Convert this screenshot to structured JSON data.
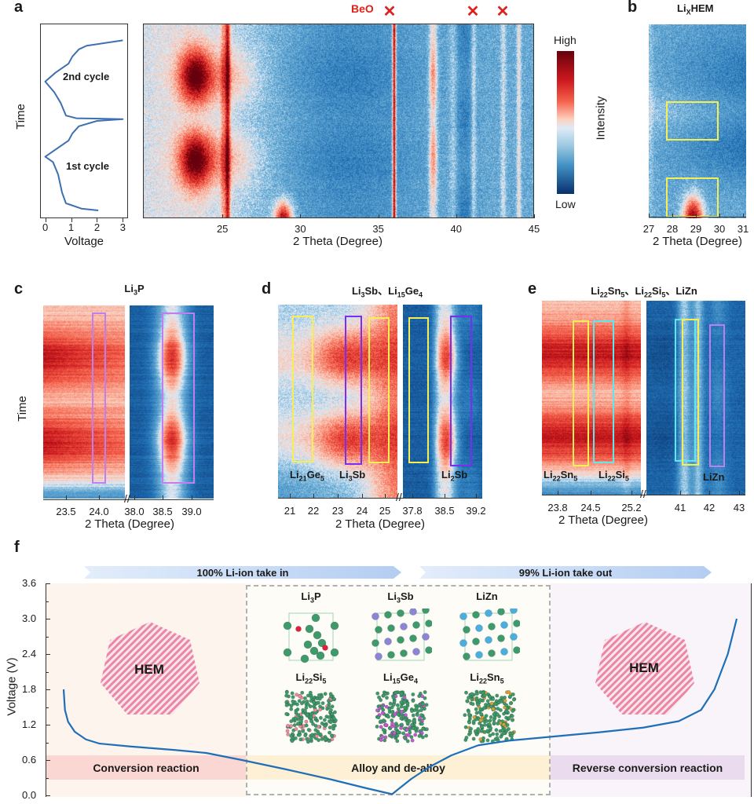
{
  "figure": {
    "panel_letters": [
      "a",
      "b",
      "c",
      "d",
      "e",
      "f"
    ]
  },
  "chart_data": [
    {
      "panel": "a-voltage",
      "type": "line",
      "xlabel": "Voltage",
      "ylabel": "Time",
      "xlim": [
        -0.2,
        3.2
      ],
      "xticks": [
        "0",
        "1",
        "2",
        "3"
      ],
      "annotations": [
        "2nd cycle",
        "1st cycle"
      ],
      "series": [
        {
          "name": "voltage profile",
          "points_voltage_vs_time_fraction": [
            [
              2.05,
              0.0
            ],
            [
              1.4,
              0.01
            ],
            [
              0.8,
              0.04
            ],
            [
              0.65,
              0.1
            ],
            [
              0.5,
              0.2
            ],
            [
              0.3,
              0.27
            ],
            [
              0.0,
              0.3
            ],
            [
              0.4,
              0.34
            ],
            [
              0.9,
              0.39
            ],
            [
              1.05,
              0.43
            ],
            [
              1.3,
              0.47
            ],
            [
              2.0,
              0.5
            ],
            [
              3.0,
              0.51
            ],
            [
              1.2,
              0.515
            ],
            [
              0.8,
              0.53
            ],
            [
              0.6,
              0.6
            ],
            [
              0.35,
              0.66
            ],
            [
              0.0,
              0.72
            ],
            [
              0.4,
              0.77
            ],
            [
              0.9,
              0.82
            ],
            [
              1.05,
              0.86
            ],
            [
              1.3,
              0.9
            ],
            [
              1.6,
              0.92
            ],
            [
              3.0,
              0.95
            ]
          ]
        }
      ]
    },
    {
      "panel": "a-heatmap",
      "type": "heatmap",
      "xlabel": "2 Theta (Degree)",
      "xlim": [
        19.9,
        45
      ],
      "xticks": [
        "25",
        "30",
        "35",
        "40",
        "45"
      ],
      "colorbar": {
        "label": "Intensity",
        "high": "High",
        "low": "Low"
      },
      "markers": [
        {
          "label": "BeO",
          "x": 36.0
        },
        {
          "label": "×",
          "x": 36.0
        },
        {
          "label": "×",
          "x": 41.1
        },
        {
          "label": "×",
          "x": 43.0
        }
      ],
      "peaks_2theta": [
        23.2,
        25.3,
        28.9,
        36.0,
        38.5,
        41.1,
        43.0,
        44.0
      ]
    },
    {
      "panel": "b",
      "type": "heatmap",
      "title": "LixHEM",
      "xlabel": "2 Theta (Degree)",
      "xlim": [
        27,
        31
      ],
      "xticks": [
        "27",
        "28",
        "29",
        "30",
        "31"
      ],
      "highlight_boxes": [
        {
          "x": [
            27.7,
            29.9
          ],
          "color": "#f2f06a"
        },
        {
          "x": [
            27.7,
            29.9
          ],
          "color": "#f2f06a"
        }
      ]
    },
    {
      "panel": "c",
      "type": "heatmap",
      "title": "Li3P",
      "ylabel": "Time",
      "xlabel": "2 Theta (Degree)",
      "xticks_left": [
        "23.5",
        "24.0"
      ],
      "xticks_right": [
        "38.0",
        "38.5",
        "39.0"
      ],
      "highlight_boxes": [
        {
          "x": [
            23.85,
            23.95
          ],
          "color": "#c07ef0"
        },
        {
          "x": [
            38.3,
            38.75
          ],
          "color": "#c07ef0"
        }
      ]
    },
    {
      "panel": "d",
      "type": "heatmap",
      "title": "Li3Sb、Li15Ge4",
      "xlabel": "2 Theta (Degree)",
      "xticks_left": [
        "21",
        "22",
        "23",
        "24",
        "25"
      ],
      "xticks_right": [
        "37.8",
        "38.5",
        "39.2"
      ],
      "box_labels": [
        "Li21Ge5",
        "Li3Sb",
        "Li2Sb"
      ]
    },
    {
      "panel": "e",
      "type": "heatmap",
      "title": "Li22Sn5、Li22Si5、LiZn",
      "xlabel": "2 Theta (Degree)",
      "xticks_left": [
        "23.8",
        "24.5",
        "25.2"
      ],
      "xticks_right": [
        "41",
        "42",
        "43"
      ],
      "box_labels": [
        "Li22Sn5",
        "Li22Si5",
        "LiZn"
      ]
    },
    {
      "panel": "f",
      "type": "line",
      "ylabel": "Voltage (V)",
      "ylim": [
        0.0,
        3.6
      ],
      "yticks": [
        "0.0",
        "0.6",
        "1.2",
        "1.8",
        "2.4",
        "3.0",
        "3.6"
      ],
      "arrows": [
        "100% Li-ion take in",
        "99% Li-ion take out"
      ],
      "regions": [
        "Conversion reaction",
        "Alloy and de-alloy",
        "Reverse conversion reaction"
      ],
      "hem_labels": [
        "HEM",
        "HEM"
      ],
      "structures": [
        "Li3P",
        "Li3Sb",
        "LiZn",
        "Li22Si5",
        "Li15Ge4",
        "Li22Sn5"
      ],
      "series": [
        {
          "name": "discharge/charge",
          "color": "#1f6fb8",
          "points_progress_voltage": [
            [
              0.0,
              1.8
            ],
            [
              0.003,
              1.45
            ],
            [
              0.01,
              1.25
            ],
            [
              0.025,
              1.08
            ],
            [
              0.05,
              0.95
            ],
            [
              0.08,
              0.88
            ],
            [
              0.15,
              0.83
            ],
            [
              0.25,
              0.77
            ],
            [
              0.32,
              0.72
            ],
            [
              0.4,
              0.6
            ],
            [
              0.5,
              0.44
            ],
            [
              0.6,
              0.27
            ],
            [
              0.68,
              0.12
            ],
            [
              0.737,
              0.02
            ],
            [
              0.75,
              0.1
            ],
            [
              0.78,
              0.28
            ],
            [
              0.82,
              0.48
            ],
            [
              0.87,
              0.68
            ],
            [
              0.93,
              0.85
            ],
            [
              1.0,
              0.93
            ],
            [
              1.1,
              1.0
            ],
            [
              1.2,
              1.07
            ],
            [
              1.3,
              1.15
            ],
            [
              1.38,
              1.26
            ],
            [
              1.43,
              1.45
            ],
            [
              1.46,
              1.8
            ],
            [
              1.49,
              2.4
            ],
            [
              1.51,
              3.0
            ]
          ]
        }
      ]
    }
  ],
  "labels": {
    "a": {
      "time": "Time",
      "voltage": "Voltage",
      "cycle2": "2nd cycle",
      "cycle1": "1st cycle",
      "two_theta": "2 Theta (Degree)",
      "beo": "BeO",
      "x": "✕",
      "high": "High",
      "low": "Low",
      "intensity": "Intensity",
      "vticks": [
        "0",
        "1",
        "2",
        "3"
      ],
      "tticks": [
        "25",
        "30",
        "35",
        "40",
        "45"
      ]
    },
    "b": {
      "title_main": "Li",
      "title_sub": "X",
      "title_rest": "HEM",
      "two_theta": "2 Theta (Degree)",
      "ticks": [
        "27",
        "28",
        "29",
        "30",
        "31"
      ]
    },
    "c": {
      "t1": "Li",
      "t1s": "3",
      "t1r": "P",
      "time": "Time",
      "two_theta": "2 Theta (Degree)",
      "ticksL": [
        "23.5",
        "24.0"
      ],
      "ticksR": [
        "38.0",
        "38.5",
        "39.0"
      ]
    },
    "d": {
      "two_theta": "2 Theta (Degree)",
      "ticksL": [
        "21",
        "22",
        "23",
        "24",
        "25"
      ],
      "ticksR": [
        "37.8",
        "38.5",
        "39.2"
      ]
    },
    "e": {
      "two_theta": "2 Theta (Degree)",
      "ticksL": [
        "23.8",
        "24.5",
        "25.2"
      ],
      "ticksR": [
        "41",
        "42",
        "43"
      ]
    },
    "f": {
      "ylabel": "Voltage (V)",
      "yticks": [
        "3.6",
        "3.0",
        "2.4",
        "1.8",
        "1.2",
        "0.6",
        "0.0"
      ],
      "arrow_in": "100% Li-ion take in",
      "arrow_out": "99% Li-ion take out",
      "conv": "Conversion reaction",
      "alloy": "Alloy and de-alloy",
      "reverse": "Reverse conversion reaction",
      "hem": "HEM"
    }
  },
  "colors": {
    "curve": "#3f6fb0",
    "f_curve": "#1f6fb8",
    "yellow_box": "#f5ef55",
    "purple_box": "#c07ef0",
    "violet_box": "#7a2ff0",
    "cyan_box": "#5fe8ec",
    "marker_red": "#e0201b",
    "hem_pink": "#e9799c"
  }
}
